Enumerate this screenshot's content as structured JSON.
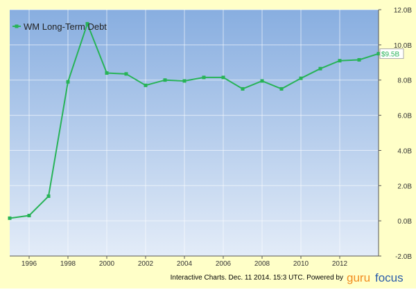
{
  "chart_data": {
    "type": "line",
    "x": [
      1995,
      1996,
      1997,
      1998,
      1999,
      2000,
      2001,
      2002,
      2003,
      2004,
      2005,
      2006,
      2007,
      2008,
      2009,
      2010,
      2011,
      2012,
      2013,
      2014
    ],
    "series": [
      {
        "name": "WM Long-Term Debt",
        "color": "#27b357",
        "values": [
          0.15,
          0.3,
          1.4,
          7.9,
          11.2,
          8.4,
          8.35,
          7.7,
          8.0,
          7.95,
          8.15,
          8.15,
          7.5,
          7.95,
          7.5,
          8.1,
          8.65,
          9.1,
          9.15,
          9.5
        ],
        "value_labels": [
          null,
          null,
          null,
          null,
          null,
          null,
          null,
          null,
          null,
          null,
          null,
          null,
          null,
          null,
          null,
          null,
          null,
          null,
          null,
          "$9.5B"
        ]
      }
    ],
    "xlim": [
      1995,
      2014
    ],
    "xticks": [
      1996,
      1998,
      2000,
      2002,
      2004,
      2006,
      2008,
      2010,
      2012
    ],
    "ylim": [
      -2,
      12
    ],
    "yticks": [
      {
        "value": -2,
        "label": "-2.0B"
      },
      {
        "value": 0,
        "label": "0.0B"
      },
      {
        "value": 2,
        "label": "2.0B"
      },
      {
        "value": 4,
        "label": "4.0B"
      },
      {
        "value": 6,
        "label": "6.0B"
      },
      {
        "value": 8,
        "label": "8.0B"
      },
      {
        "value": 10,
        "label": "10.0B"
      },
      {
        "value": 12,
        "label": "12.0B"
      }
    ],
    "grid": true,
    "legend": "top-left",
    "footer": {
      "text": "Interactive Charts. Dec. 11 2014. 15:3 UTC. Powered by",
      "brand_a": "guru",
      "brand_b": "focus"
    }
  }
}
